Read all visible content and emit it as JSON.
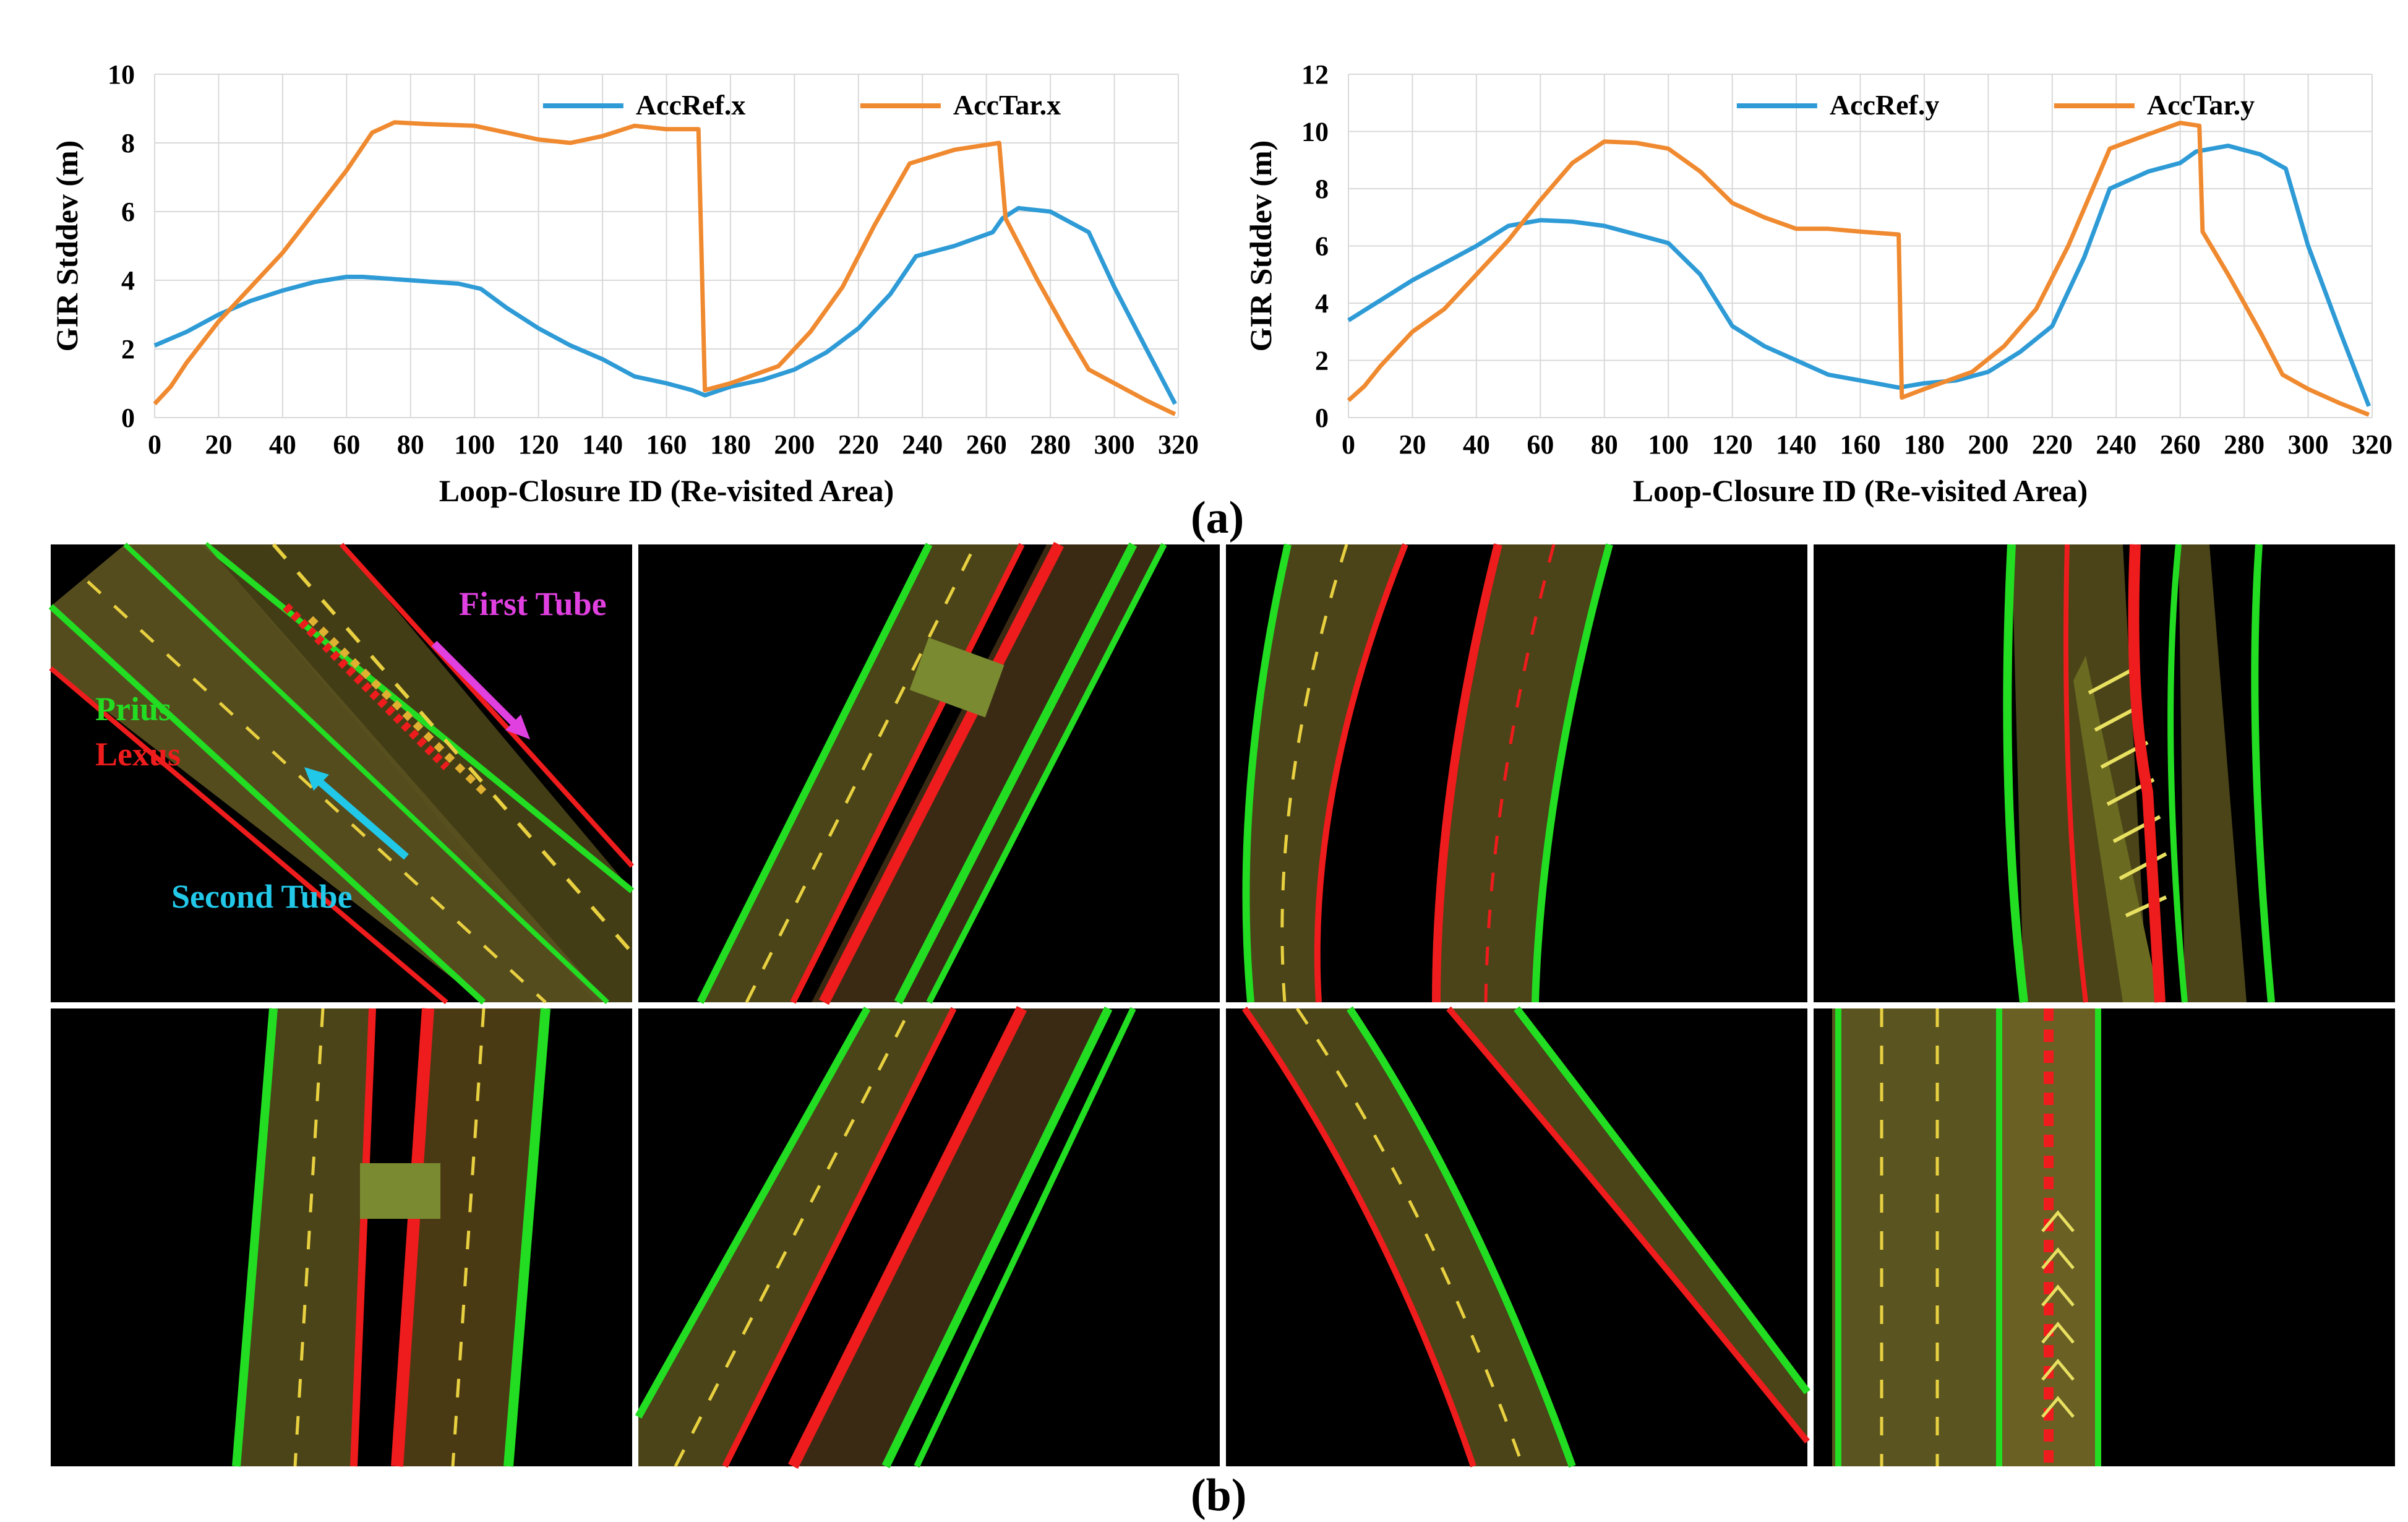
{
  "chart_data": [
    {
      "type": "line",
      "xlabel": "Loop-Closure ID (Re-visited Area)",
      "ylabel": "GIR Stddev (m)",
      "xlim": [
        0,
        320
      ],
      "ylim": [
        0,
        10
      ],
      "xticks": [
        0,
        20,
        40,
        60,
        80,
        100,
        120,
        140,
        160,
        180,
        200,
        220,
        240,
        260,
        280,
        300,
        320
      ],
      "yticks": [
        0,
        2,
        4,
        6,
        8,
        10
      ],
      "grid": true,
      "legend": "top-right",
      "series": [
        {
          "name": "AccRef.x",
          "color": "#2E9BD6",
          "points": [
            [
              0,
              2.1
            ],
            [
              10,
              2.5
            ],
            [
              20,
              3.0
            ],
            [
              30,
              3.4
            ],
            [
              40,
              3.7
            ],
            [
              50,
              3.95
            ],
            [
              60,
              4.1
            ],
            [
              65,
              4.1
            ],
            [
              80,
              4.0
            ],
            [
              95,
              3.9
            ],
            [
              102,
              3.75
            ],
            [
              110,
              3.2
            ],
            [
              120,
              2.6
            ],
            [
              130,
              2.1
            ],
            [
              140,
              1.7
            ],
            [
              150,
              1.2
            ],
            [
              160,
              1.0
            ],
            [
              168,
              0.8
            ],
            [
              172,
              0.65
            ],
            [
              180,
              0.9
            ],
            [
              190,
              1.1
            ],
            [
              200,
              1.4
            ],
            [
              210,
              1.9
            ],
            [
              220,
              2.6
            ],
            [
              230,
              3.6
            ],
            [
              238,
              4.7
            ],
            [
              250,
              5.0
            ],
            [
              262,
              5.4
            ],
            [
              265,
              5.8
            ],
            [
              270,
              6.1
            ],
            [
              280,
              6.0
            ],
            [
              292,
              5.4
            ],
            [
              300,
              3.8
            ],
            [
              310,
              2.0
            ],
            [
              319,
              0.4
            ]
          ]
        },
        {
          "name": "AccTar.x",
          "color": "#F08A30",
          "points": [
            [
              0,
              0.4
            ],
            [
              5,
              0.9
            ],
            [
              10,
              1.6
            ],
            [
              20,
              2.8
            ],
            [
              30,
              3.8
            ],
            [
              40,
              4.8
            ],
            [
              50,
              6.0
            ],
            [
              60,
              7.2
            ],
            [
              68,
              8.3
            ],
            [
              75,
              8.6
            ],
            [
              85,
              8.55
            ],
            [
              100,
              8.5
            ],
            [
              110,
              8.3
            ],
            [
              120,
              8.1
            ],
            [
              130,
              8.0
            ],
            [
              140,
              8.2
            ],
            [
              150,
              8.5
            ],
            [
              160,
              8.4
            ],
            [
              170,
              8.4
            ],
            [
              172,
              0.8
            ],
            [
              180,
              1.0
            ],
            [
              195,
              1.5
            ],
            [
              205,
              2.5
            ],
            [
              215,
              3.8
            ],
            [
              225,
              5.6
            ],
            [
              236,
              7.4
            ],
            [
              250,
              7.8
            ],
            [
              264,
              8.0
            ],
            [
              266,
              5.8
            ],
            [
              276,
              4.0
            ],
            [
              285,
              2.5
            ],
            [
              292,
              1.4
            ],
            [
              300,
              1.0
            ],
            [
              310,
              0.5
            ],
            [
              319,
              0.1
            ]
          ]
        }
      ]
    },
    {
      "type": "line",
      "xlabel": "Loop-Closure ID (Re-visited Area)",
      "ylabel": "GIR Stddev (m)",
      "xlim": [
        0,
        320
      ],
      "ylim": [
        0,
        12
      ],
      "xticks": [
        0,
        20,
        40,
        60,
        80,
        100,
        120,
        140,
        160,
        180,
        200,
        220,
        240,
        260,
        280,
        300,
        320
      ],
      "yticks": [
        0,
        2,
        4,
        6,
        8,
        10,
        12
      ],
      "grid": true,
      "legend": "top-right",
      "series": [
        {
          "name": "AccRef.y",
          "color": "#2E9BD6",
          "points": [
            [
              0,
              3.4
            ],
            [
              10,
              4.1
            ],
            [
              20,
              4.8
            ],
            [
              30,
              5.4
            ],
            [
              40,
              6.0
            ],
            [
              50,
              6.7
            ],
            [
              60,
              6.9
            ],
            [
              70,
              6.85
            ],
            [
              80,
              6.7
            ],
            [
              90,
              6.4
            ],
            [
              100,
              6.1
            ],
            [
              110,
              5.0
            ],
            [
              120,
              3.2
            ],
            [
              130,
              2.5
            ],
            [
              140,
              2.0
            ],
            [
              150,
              1.5
            ],
            [
              160,
              1.3
            ],
            [
              172,
              1.05
            ],
            [
              180,
              1.2
            ],
            [
              190,
              1.3
            ],
            [
              200,
              1.6
            ],
            [
              210,
              2.3
            ],
            [
              220,
              3.2
            ],
            [
              230,
              5.6
            ],
            [
              238,
              8.0
            ],
            [
              250,
              8.6
            ],
            [
              260,
              8.9
            ],
            [
              265,
              9.3
            ],
            [
              275,
              9.5
            ],
            [
              285,
              9.2
            ],
            [
              293,
              8.7
            ],
            [
              300,
              6.0
            ],
            [
              310,
              3.0
            ],
            [
              319,
              0.4
            ]
          ]
        },
        {
          "name": "AccTar.y",
          "color": "#F08A30",
          "points": [
            [
              0,
              0.6
            ],
            [
              5,
              1.1
            ],
            [
              10,
              1.8
            ],
            [
              20,
              3.0
            ],
            [
              30,
              3.8
            ],
            [
              40,
              5.0
            ],
            [
              50,
              6.2
            ],
            [
              60,
              7.6
            ],
            [
              70,
              8.9
            ],
            [
              80,
              9.65
            ],
            [
              90,
              9.6
            ],
            [
              100,
              9.4
            ],
            [
              110,
              8.6
            ],
            [
              120,
              7.5
            ],
            [
              130,
              7.0
            ],
            [
              140,
              6.6
            ],
            [
              150,
              6.6
            ],
            [
              160,
              6.5
            ],
            [
              172,
              6.4
            ],
            [
              173,
              0.7
            ],
            [
              180,
              1.0
            ],
            [
              195,
              1.6
            ],
            [
              205,
              2.5
            ],
            [
              215,
              3.8
            ],
            [
              225,
              6.0
            ],
            [
              238,
              9.4
            ],
            [
              250,
              9.9
            ],
            [
              260,
              10.3
            ],
            [
              266,
              10.2
            ],
            [
              267,
              6.5
            ],
            [
              275,
              5.0
            ],
            [
              285,
              3.0
            ],
            [
              292,
              1.5
            ],
            [
              300,
              1.0
            ],
            [
              310,
              0.5
            ],
            [
              319,
              0.1
            ]
          ]
        }
      ]
    }
  ],
  "panel_labels": {
    "a": "(a)",
    "b": "(b)"
  },
  "tile_labels": {
    "first_tube": "First Tube",
    "prius": "Prius",
    "lexus": "Lexus",
    "second_tube": "Second Tube"
  },
  "colors": {
    "prius": "#22DD22",
    "lexus": "#EE1C1C",
    "first_tube": "#E040E0",
    "second_tube": "#22C8E8"
  }
}
